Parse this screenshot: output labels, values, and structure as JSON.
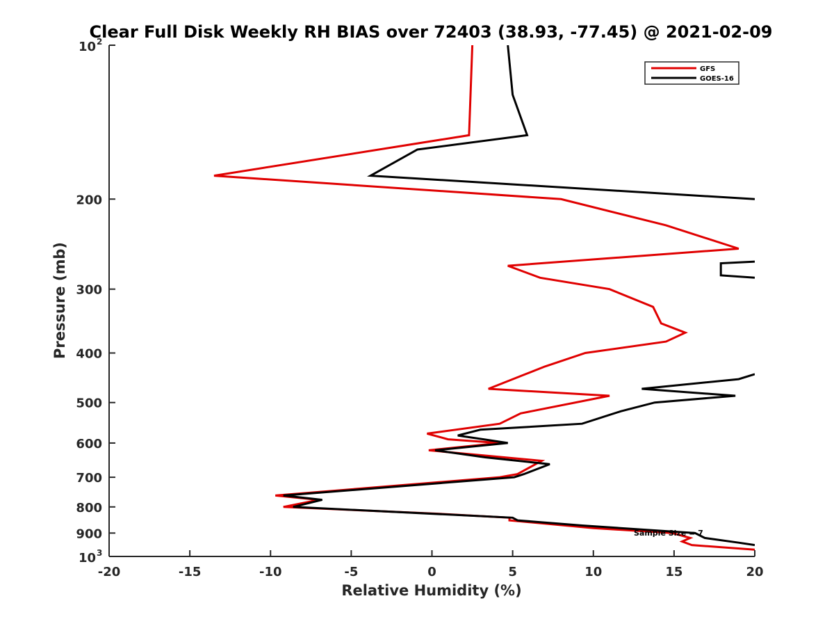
{
  "chart_data": {
    "type": "line",
    "title": "Clear Full Disk Weekly RH BIAS over 72403 (38.93, -77.45) @ 2021-02-09",
    "xlabel": "Relative Humidity (%)",
    "ylabel": "Pressure (mb)",
    "xlim": [
      -20,
      20
    ],
    "ylim": [
      100,
      1000
    ],
    "y_scale": "log",
    "y_reversed": true,
    "grid": false,
    "legend_position": "top-right",
    "x_ticks": [
      {
        "value": -20,
        "label": "-20"
      },
      {
        "value": -15,
        "label": "-15"
      },
      {
        "value": -10,
        "label": "-10"
      },
      {
        "value": -5,
        "label": "-5"
      },
      {
        "value": 0,
        "label": "0"
      },
      {
        "value": 5,
        "label": "5"
      },
      {
        "value": 10,
        "label": "10"
      },
      {
        "value": 15,
        "label": "15"
      },
      {
        "value": 20,
        "label": "20"
      }
    ],
    "y_ticks": [
      {
        "value": 100,
        "base": "10",
        "exp": "2"
      },
      {
        "value": 200,
        "label": "200"
      },
      {
        "value": 300,
        "label": "300"
      },
      {
        "value": 400,
        "label": "400"
      },
      {
        "value": 500,
        "label": "500"
      },
      {
        "value": 600,
        "label": "600"
      },
      {
        "value": 700,
        "label": "700"
      },
      {
        "value": 800,
        "label": "800"
      },
      {
        "value": 900,
        "label": "900"
      },
      {
        "value": 1000,
        "base": "10",
        "exp": "3"
      }
    ],
    "annotation": "Sample Size = 7",
    "series": [
      {
        "name": "GFS",
        "color": "#e00000",
        "points": [
          [
            2.5,
            100
          ],
          [
            2.3,
            150
          ],
          [
            -13.5,
            180
          ],
          [
            8,
            200
          ],
          [
            14.5,
            225
          ],
          [
            19,
            250
          ],
          [
            4.7,
            270
          ],
          [
            6.7,
            285
          ],
          [
            11,
            300
          ],
          [
            13.7,
            325
          ],
          [
            14.2,
            350
          ],
          [
            15.7,
            365
          ],
          [
            14.5,
            380
          ],
          [
            9.5,
            400
          ],
          [
            7,
            425
          ],
          [
            5.8,
            440
          ],
          [
            3.5,
            470
          ],
          [
            11,
            485
          ],
          [
            5.5,
            525
          ],
          [
            4.2,
            550
          ],
          [
            -0.3,
            575
          ],
          [
            1,
            590
          ],
          [
            4.2,
            600
          ],
          [
            -0.2,
            620
          ],
          [
            6.8,
            650
          ],
          [
            5.3,
            690
          ],
          [
            4.2,
            700
          ],
          [
            -9.7,
            760
          ],
          [
            -7,
            775
          ],
          [
            -9.2,
            800
          ],
          [
            0.4,
            825
          ],
          [
            4.8,
            840
          ],
          [
            4.8,
            850
          ],
          [
            10,
            880
          ],
          [
            14.9,
            900
          ],
          [
            16,
            920
          ],
          [
            15.5,
            935
          ],
          [
            16.1,
            950
          ],
          [
            20,
            970
          ]
        ]
      },
      {
        "name": "GOES-16",
        "color": "#000000",
        "points": [
          [
            4.7,
            100
          ],
          [
            5,
            125
          ],
          [
            5.9,
            150
          ],
          [
            -0.9,
            160
          ],
          [
            -3.8,
            180
          ],
          [
            20,
            200
          ],
          [
            null,
            null
          ],
          [
            20,
            265
          ],
          [
            17.9,
            267
          ],
          [
            17.9,
            282
          ],
          [
            20,
            285
          ],
          [
            null,
            null
          ],
          [
            20,
            440
          ],
          [
            19,
            450
          ],
          [
            13,
            470
          ],
          [
            18.8,
            485
          ],
          [
            13.8,
            500
          ],
          [
            11.7,
            520
          ],
          [
            9.3,
            550
          ],
          [
            3,
            565
          ],
          [
            1.6,
            580
          ],
          [
            3.2,
            590
          ],
          [
            4.7,
            600
          ],
          [
            0.2,
            620
          ],
          [
            3.3,
            640
          ],
          [
            7.3,
            660
          ],
          [
            5.7,
            690
          ],
          [
            5.1,
            700
          ],
          [
            -9.2,
            760
          ],
          [
            -6.8,
            775
          ],
          [
            -8.6,
            800
          ],
          [
            5,
            840
          ],
          [
            5.3,
            850
          ],
          [
            9.3,
            870
          ],
          [
            16.3,
            900
          ],
          [
            16.9,
            920
          ],
          [
            19,
            940
          ],
          [
            20,
            950
          ]
        ]
      }
    ]
  }
}
